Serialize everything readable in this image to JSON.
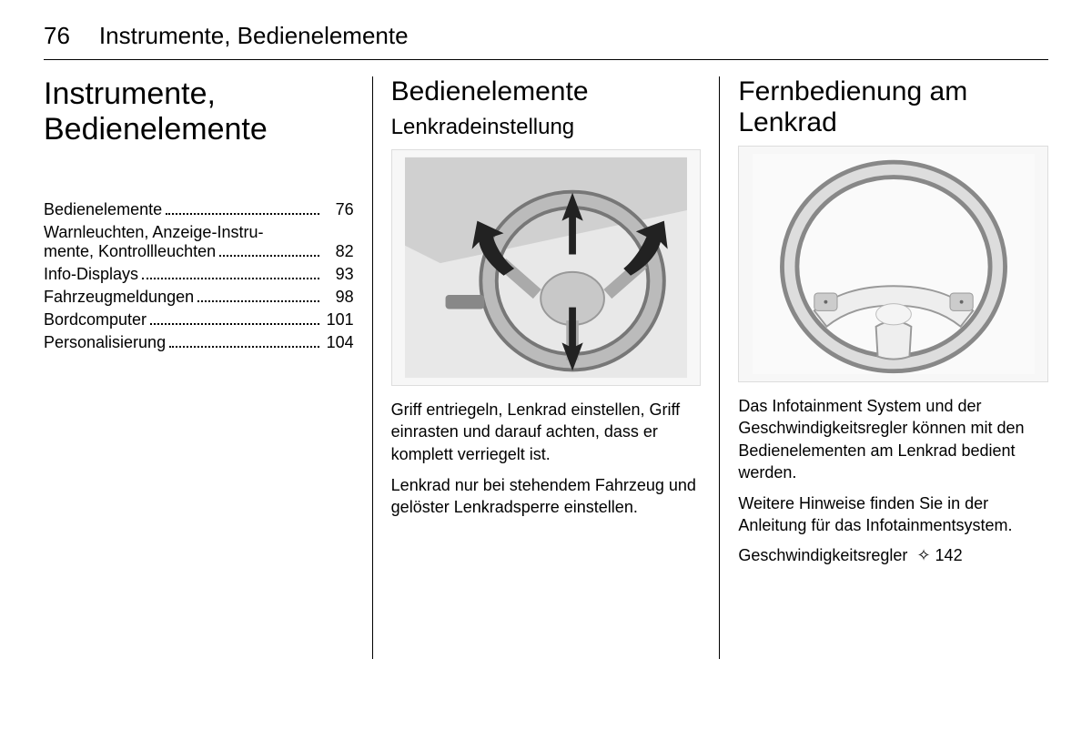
{
  "header": {
    "page_number": "76",
    "section_name": "Instrumente, Bedienelemente"
  },
  "col1": {
    "title": "Instrumente, Bedienelemente",
    "toc": [
      {
        "label": "Bedienelemente",
        "page": "76",
        "multiline": false
      },
      {
        "label": "Warnleuchten, Anzeige-Instru-",
        "label2": "mente, Kontrollleuchten",
        "page": "82",
        "multiline": true
      },
      {
        "label": "Info-Displays",
        "page": "93",
        "multiline": false
      },
      {
        "label": "Fahrzeugmeldungen",
        "page": "98",
        "multiline": false
      },
      {
        "label": "Bordcomputer",
        "page": "101",
        "multiline": false
      },
      {
        "label": "Personalisierung",
        "page": "104",
        "multiline": false
      }
    ]
  },
  "col2": {
    "title": "Bedienelemente",
    "subtitle": "Lenkradeinstellung",
    "para1": "Griff entriegeln, Lenkrad einstellen, Griff einrasten und darauf achten, dass er komplett verriegelt ist.",
    "para2": "Lenkrad nur bei stehendem Fahrzeug und gelöster Lenkradsperre einstellen."
  },
  "col3": {
    "title": "Fernbedienung am Lenkrad",
    "para1": "Das Infotainment System und der Geschwindigkeitsregler können mit den Bedienelementen am Lenkrad bedient werden.",
    "para2": "Weitere Hinweise finden Sie in der Anleitung für das Infotainmentsystem.",
    "xref_label": "Geschwindigkeitsregler",
    "xref_page": "142"
  }
}
